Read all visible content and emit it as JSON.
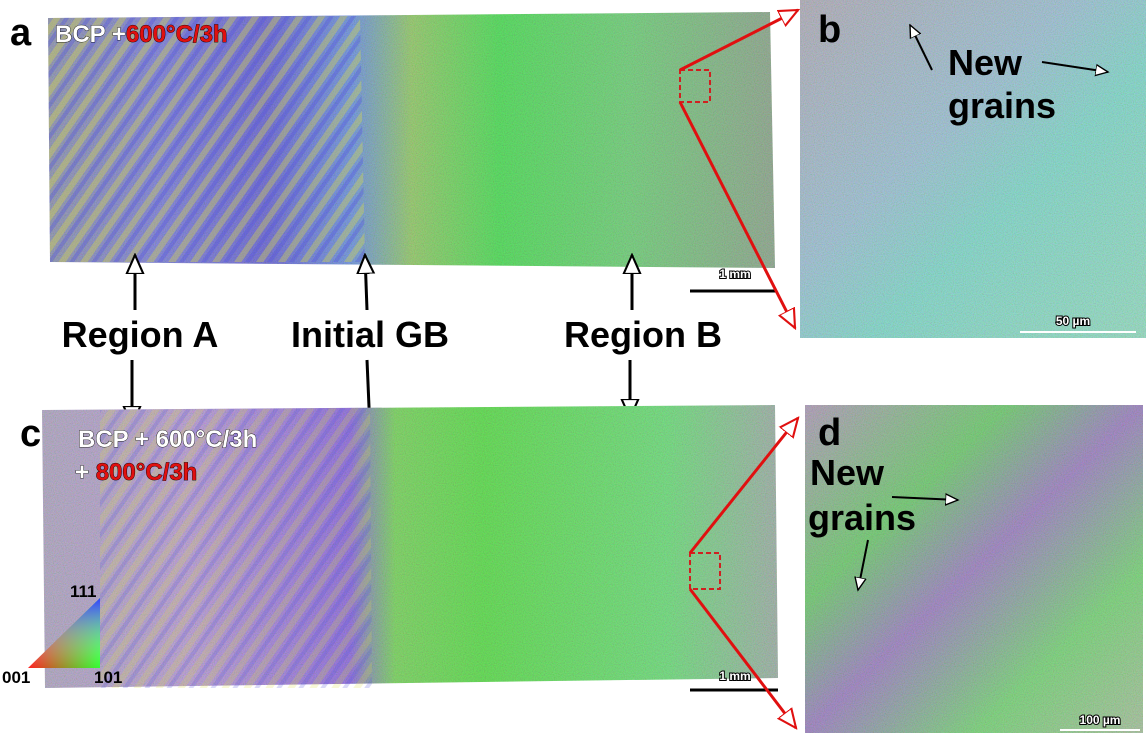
{
  "panels": [
    {
      "label": "a",
      "caption": [
        "BCP +",
        "600°C/3h"
      ],
      "scale_bar": "1 mm"
    },
    {
      "label": "b",
      "annotation": [
        "New",
        "grains"
      ],
      "scale_bar": "50 µm"
    },
    {
      "label": "c",
      "caption": [
        "BCP + 600°C/3h",
        "+",
        "800°C/3h"
      ],
      "scale_bar": "1 mm"
    },
    {
      "label": "d",
      "annotation": [
        "New",
        "grains"
      ],
      "scale_bar": "100 µm"
    }
  ],
  "regions": [
    "Region A",
    "Initial GB",
    "Region B"
  ],
  "ipf_legend": [
    "111",
    "001",
    "101"
  ]
}
